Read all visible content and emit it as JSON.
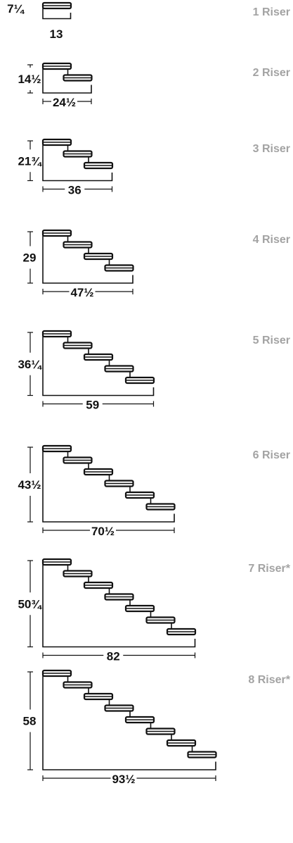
{
  "colors": {
    "ink": "#111111",
    "label": "#a3a3a3",
    "background": "#ffffff"
  },
  "stairs": [
    {
      "risers": 1,
      "label": "1 Riser",
      "height": "7¼",
      "width": "13"
    },
    {
      "risers": 2,
      "label": "2 Riser",
      "height": "14½",
      "width": "24½"
    },
    {
      "risers": 3,
      "label": "3 Riser",
      "height": "21¾",
      "width": "36"
    },
    {
      "risers": 4,
      "label": "4 Riser",
      "height": "29",
      "width": "47½"
    },
    {
      "risers": 5,
      "label": "5 Riser",
      "height": "36¼",
      "width": "59"
    },
    {
      "risers": 6,
      "label": "6 Riser",
      "height": "43½",
      "width": "70½"
    },
    {
      "risers": 7,
      "label": "7 Riser*",
      "height": "50¾",
      "width": "82"
    },
    {
      "risers": 8,
      "label": "8 Riser*",
      "height": "58",
      "width": "93½"
    }
  ]
}
